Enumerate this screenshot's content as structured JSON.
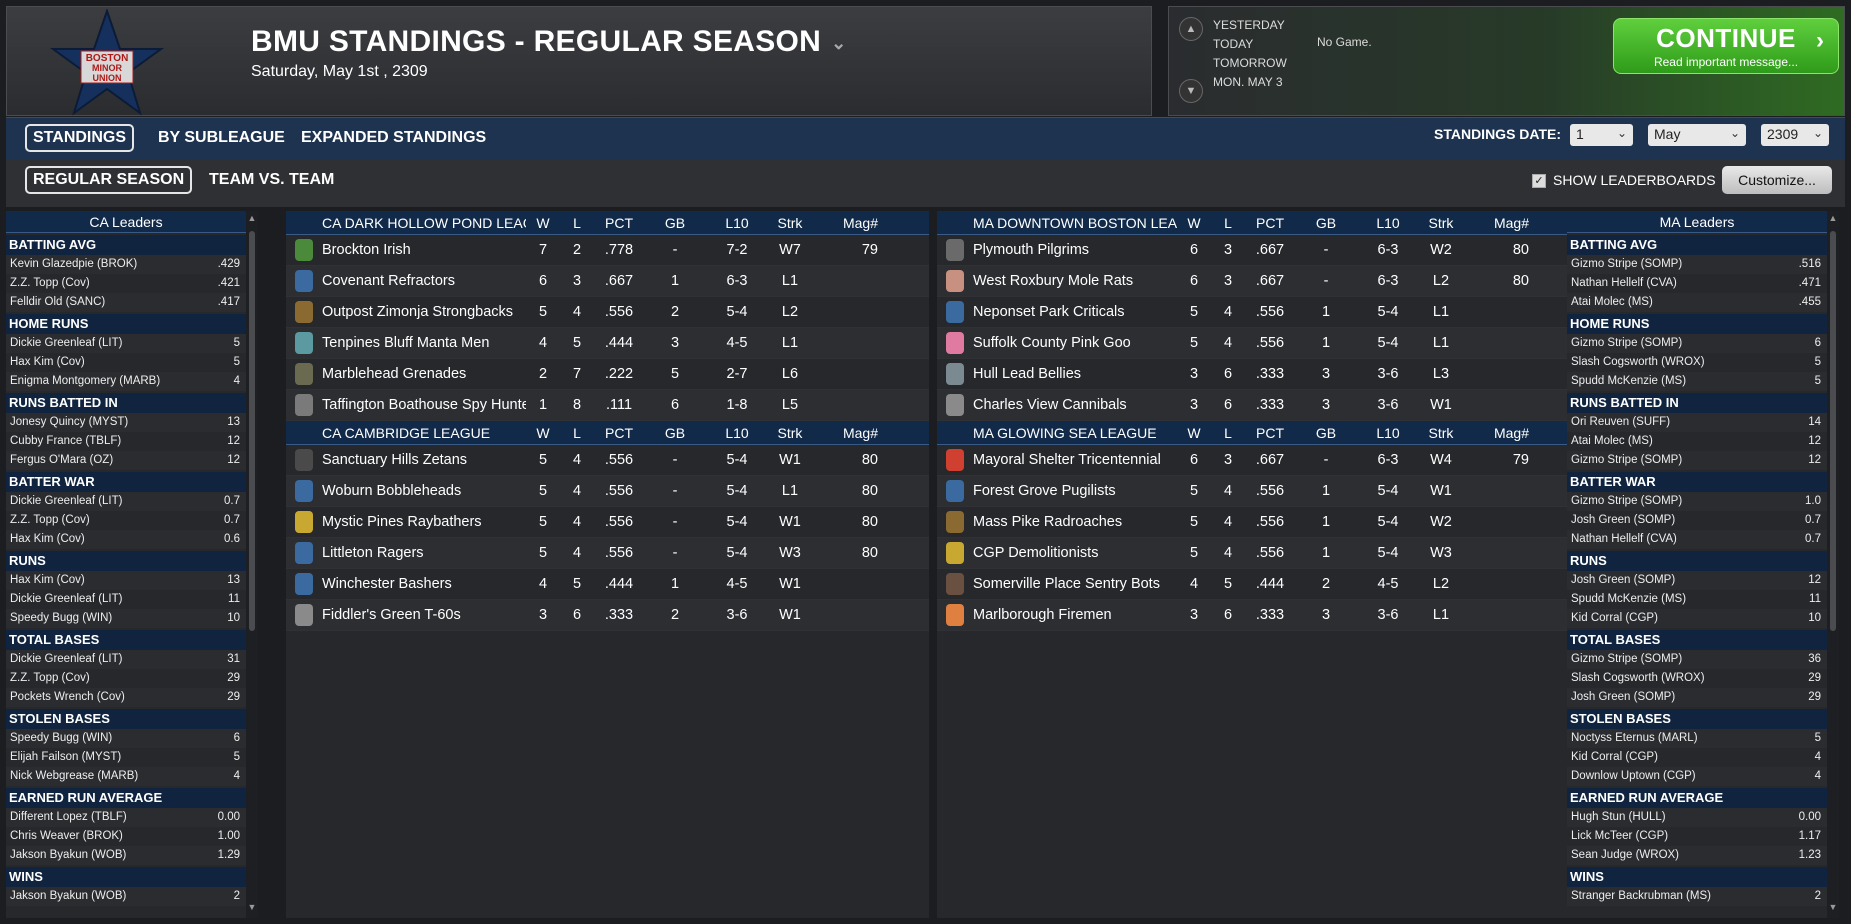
{
  "header": {
    "logo_text": [
      "BOSTON",
      "MINOR",
      "UNION"
    ],
    "title": "BMU STANDINGS - REGULAR SEASON",
    "date": "Saturday, May 1st , 2309"
  },
  "schedule": {
    "days": [
      "YESTERDAY",
      "TODAY",
      "TOMORROW",
      "MON. MAY 3"
    ],
    "today_value": "No Game."
  },
  "continue": {
    "label": "CONTINUE",
    "sub": "Read important message..."
  },
  "tabs1": [
    "STANDINGS",
    "BY SUBLEAGUE",
    "EXPANDED STANDINGS"
  ],
  "tabs2": [
    "REGULAR SEASON",
    "TEAM VS. TEAM"
  ],
  "standings_date": {
    "label": "STANDINGS DATE:",
    "day": "1",
    "month": "May",
    "year": "2309"
  },
  "leaderboards": {
    "label": "SHOW LEADERBOARDS",
    "customize": "Customize..."
  },
  "colors": {
    "header_blue": "#122a4a",
    "green": "#3fb226"
  },
  "left_leaders": {
    "title": "CA Leaders",
    "categories": [
      {
        "name": "BATTING AVG",
        "rows": [
          [
            "Kevin Glazedpie (BROK)",
            ".429"
          ],
          [
            "Z.Z. Topp (Cov)",
            ".421"
          ],
          [
            "Felldir Old (SANC)",
            ".417"
          ]
        ]
      },
      {
        "name": "HOME RUNS",
        "rows": [
          [
            "Dickie Greenleaf (LIT)",
            "5"
          ],
          [
            "Hax Kim (Cov)",
            "5"
          ],
          [
            "Enigma Montgomery (MARB)",
            "4"
          ]
        ]
      },
      {
        "name": "RUNS BATTED IN",
        "rows": [
          [
            "Jonesy Quincy (MYST)",
            "13"
          ],
          [
            "Cubby France (TBLF)",
            "12"
          ],
          [
            "Fergus O'Mara (OZ)",
            "12"
          ]
        ]
      },
      {
        "name": "BATTER WAR",
        "rows": [
          [
            "Dickie Greenleaf (LIT)",
            "0.7"
          ],
          [
            "Z.Z. Topp (Cov)",
            "0.7"
          ],
          [
            "Hax Kim (Cov)",
            "0.6"
          ]
        ]
      },
      {
        "name": "RUNS",
        "rows": [
          [
            "Hax Kim (Cov)",
            "13"
          ],
          [
            "Dickie Greenleaf (LIT)",
            "11"
          ],
          [
            "Speedy Bugg (WIN)",
            "10"
          ]
        ]
      },
      {
        "name": "TOTAL BASES",
        "rows": [
          [
            "Dickie Greenleaf (LIT)",
            "31"
          ],
          [
            "Z.Z. Topp (Cov)",
            "29"
          ],
          [
            "Pockets Wrench (Cov)",
            "29"
          ]
        ]
      },
      {
        "name": "STOLEN BASES",
        "rows": [
          [
            "Speedy Bugg (WIN)",
            "6"
          ],
          [
            "Elijah Failson (MYST)",
            "5"
          ],
          [
            "Nick Webgrease (MARB)",
            "4"
          ]
        ]
      },
      {
        "name": "EARNED RUN AVERAGE",
        "rows": [
          [
            "Different Lopez (TBLF)",
            "0.00"
          ],
          [
            "Chris Weaver (BROK)",
            "1.00"
          ],
          [
            "Jakson Byakun (WOB)",
            "1.29"
          ]
        ]
      },
      {
        "name": "WINS",
        "rows": [
          [
            "Jakson Byakun (WOB)",
            "2"
          ]
        ]
      }
    ]
  },
  "right_leaders": {
    "title": "MA Leaders",
    "categories": [
      {
        "name": "BATTING AVG",
        "rows": [
          [
            "Gizmo Stripe (SOMP)",
            ".516"
          ],
          [
            "Nathan Hellelf (CVA)",
            ".471"
          ],
          [
            "Atai Molec (MS)",
            ".455"
          ]
        ]
      },
      {
        "name": "HOME RUNS",
        "rows": [
          [
            "Gizmo Stripe (SOMP)",
            "6"
          ],
          [
            "Slash Cogsworth (WROX)",
            "5"
          ],
          [
            "Spudd McKenzie (MS)",
            "5"
          ]
        ]
      },
      {
        "name": "RUNS BATTED IN",
        "rows": [
          [
            "Ori Reuven (SUFF)",
            "14"
          ],
          [
            "Atai Molec (MS)",
            "12"
          ],
          [
            "Gizmo Stripe (SOMP)",
            "12"
          ]
        ]
      },
      {
        "name": "BATTER WAR",
        "rows": [
          [
            "Gizmo Stripe (SOMP)",
            "1.0"
          ],
          [
            "Josh Green (SOMP)",
            "0.7"
          ],
          [
            "Nathan Hellelf (CVA)",
            "0.7"
          ]
        ]
      },
      {
        "name": "RUNS",
        "rows": [
          [
            "Josh Green (SOMP)",
            "12"
          ],
          [
            "Spudd McKenzie (MS)",
            "11"
          ],
          [
            "Kid Corral (CGP)",
            "10"
          ]
        ]
      },
      {
        "name": "TOTAL BASES",
        "rows": [
          [
            "Gizmo Stripe (SOMP)",
            "36"
          ],
          [
            "Slash Cogsworth (WROX)",
            "29"
          ],
          [
            "Josh Green (SOMP)",
            "29"
          ]
        ]
      },
      {
        "name": "STOLEN BASES",
        "rows": [
          [
            "Noctyss Eternus (MARL)",
            "5"
          ],
          [
            "Kid Corral (CGP)",
            "4"
          ],
          [
            "Downlow Uptown (CGP)",
            "4"
          ]
        ]
      },
      {
        "name": "EARNED RUN AVERAGE",
        "rows": [
          [
            "Hugh Stun (HULL)",
            "0.00"
          ],
          [
            "Lick McTeer (CGP)",
            "1.17"
          ],
          [
            "Sean Judge (WROX)",
            "1.23"
          ]
        ]
      },
      {
        "name": "WINS",
        "rows": [
          [
            "Stranger Backrubman (MS)",
            "2"
          ]
        ]
      }
    ]
  },
  "columns": [
    "W",
    "L",
    "PCT",
    "GB",
    "L10",
    "Strk",
    "Mag#"
  ],
  "standings_left": [
    {
      "league": "CA DARK HOLLOW POND LEAGUE",
      "teams": [
        {
          "name": "Brockton Irish",
          "icon": "#4a8a3a",
          "w": "7",
          "l": "2",
          "pct": ".778",
          "gb": "-",
          "l10": "7-2",
          "strk": "W7",
          "mag": "79"
        },
        {
          "name": "Covenant Refractors",
          "icon": "#3a6aa0",
          "w": "6",
          "l": "3",
          "pct": ".667",
          "gb": "1",
          "l10": "6-3",
          "strk": "L1",
          "mag": ""
        },
        {
          "name": "Outpost Zimonja Strongbacks",
          "icon": "#8a6a30",
          "w": "5",
          "l": "4",
          "pct": ".556",
          "gb": "2",
          "l10": "5-4",
          "strk": "L2",
          "mag": ""
        },
        {
          "name": "Tenpines Bluff Manta Men",
          "icon": "#5a9aa0",
          "w": "4",
          "l": "5",
          "pct": ".444",
          "gb": "3",
          "l10": "4-5",
          "strk": "L1",
          "mag": ""
        },
        {
          "name": "Marblehead Grenades",
          "icon": "#6a6a50",
          "w": "2",
          "l": "7",
          "pct": ".222",
          "gb": "5",
          "l10": "2-7",
          "strk": "L6",
          "mag": ""
        },
        {
          "name": "Taffington Boathouse Spy Hunters",
          "icon": "#7a7a7a",
          "w": "1",
          "l": "8",
          "pct": ".111",
          "gb": "6",
          "l10": "1-8",
          "strk": "L5",
          "mag": ""
        }
      ]
    },
    {
      "league": "CA CAMBRIDGE LEAGUE",
      "teams": [
        {
          "name": "Sanctuary Hills Zetans",
          "icon": "#4a4a4a",
          "w": "5",
          "l": "4",
          "pct": ".556",
          "gb": "-",
          "l10": "5-4",
          "strk": "W1",
          "mag": "80"
        },
        {
          "name": "Woburn Bobbleheads",
          "icon": "#3a6aa0",
          "w": "5",
          "l": "4",
          "pct": ".556",
          "gb": "-",
          "l10": "5-4",
          "strk": "L1",
          "mag": "80"
        },
        {
          "name": "Mystic Pines Raybathers",
          "icon": "#c8a830",
          "w": "5",
          "l": "4",
          "pct": ".556",
          "gb": "-",
          "l10": "5-4",
          "strk": "W1",
          "mag": "80"
        },
        {
          "name": "Littleton Ragers",
          "icon": "#3a6aa0",
          "w": "5",
          "l": "4",
          "pct": ".556",
          "gb": "-",
          "l10": "5-4",
          "strk": "W3",
          "mag": "80"
        },
        {
          "name": "Winchester Bashers",
          "icon": "#3a6aa0",
          "w": "4",
          "l": "5",
          "pct": ".444",
          "gb": "1",
          "l10": "4-5",
          "strk": "W1",
          "mag": ""
        },
        {
          "name": "Fiddler's Green T-60s",
          "icon": "#8a8a8a",
          "w": "3",
          "l": "6",
          "pct": ".333",
          "gb": "2",
          "l10": "3-6",
          "strk": "W1",
          "mag": ""
        }
      ]
    }
  ],
  "standings_right": [
    {
      "league": "MA DOWNTOWN BOSTON LEAGUE",
      "teams": [
        {
          "name": "Plymouth Pilgrims",
          "icon": "#6a6a6a",
          "w": "6",
          "l": "3",
          "pct": ".667",
          "gb": "-",
          "l10": "6-3",
          "strk": "W2",
          "mag": "80"
        },
        {
          "name": "West Roxbury Mole Rats",
          "icon": "#c89080",
          "w": "6",
          "l": "3",
          "pct": ".667",
          "gb": "-",
          "l10": "6-3",
          "strk": "L2",
          "mag": "80"
        },
        {
          "name": "Neponset Park Criticals",
          "icon": "#3a6aa0",
          "w": "5",
          "l": "4",
          "pct": ".556",
          "gb": "1",
          "l10": "5-4",
          "strk": "L1",
          "mag": ""
        },
        {
          "name": "Suffolk County Pink Goo",
          "icon": "#e07aa0",
          "w": "5",
          "l": "4",
          "pct": ".556",
          "gb": "1",
          "l10": "5-4",
          "strk": "L1",
          "mag": ""
        },
        {
          "name": "Hull Lead Bellies",
          "icon": "#7a8a90",
          "w": "3",
          "l": "6",
          "pct": ".333",
          "gb": "3",
          "l10": "3-6",
          "strk": "L3",
          "mag": ""
        },
        {
          "name": "Charles View Cannibals",
          "icon": "#8a8a8a",
          "w": "3",
          "l": "6",
          "pct": ".333",
          "gb": "3",
          "l10": "3-6",
          "strk": "W1",
          "mag": ""
        }
      ]
    },
    {
      "league": "MA GLOWING SEA LEAGUE",
      "teams": [
        {
          "name": "Mayoral Shelter Tricentennial",
          "icon": "#d04030",
          "w": "6",
          "l": "3",
          "pct": ".667",
          "gb": "-",
          "l10": "6-3",
          "strk": "W4",
          "mag": "79"
        },
        {
          "name": "Forest Grove Pugilists",
          "icon": "#3a6aa0",
          "w": "5",
          "l": "4",
          "pct": ".556",
          "gb": "1",
          "l10": "5-4",
          "strk": "W1",
          "mag": ""
        },
        {
          "name": "Mass Pike Radroaches",
          "icon": "#8a6a30",
          "w": "5",
          "l": "4",
          "pct": ".556",
          "gb": "1",
          "l10": "5-4",
          "strk": "W2",
          "mag": ""
        },
        {
          "name": "CGP Demolitionists",
          "icon": "#c8a830",
          "w": "5",
          "l": "4",
          "pct": ".556",
          "gb": "1",
          "l10": "5-4",
          "strk": "W3",
          "mag": ""
        },
        {
          "name": "Somerville Place Sentry Bots",
          "icon": "#6a5040",
          "w": "4",
          "l": "5",
          "pct": ".444",
          "gb": "2",
          "l10": "4-5",
          "strk": "L2",
          "mag": ""
        },
        {
          "name": "Marlborough Firemen",
          "icon": "#e08040",
          "w": "3",
          "l": "6",
          "pct": ".333",
          "gb": "3",
          "l10": "3-6",
          "strk": "L1",
          "mag": ""
        }
      ]
    }
  ]
}
